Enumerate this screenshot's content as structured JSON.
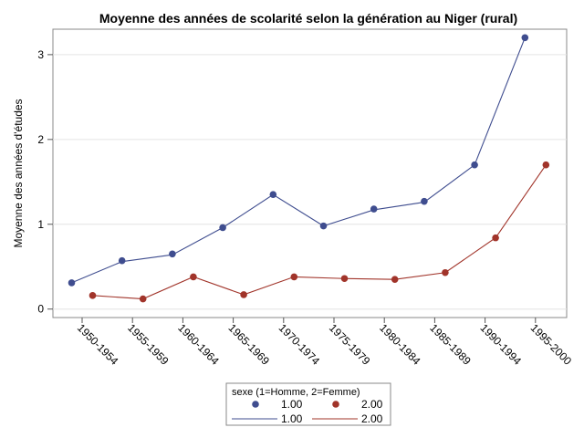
{
  "chart_data": {
    "type": "line",
    "title": "Moyenne des années de scolarité selon la génération au Niger (rural)",
    "xlabel": "",
    "ylabel": "Moyenne des années d'études",
    "categories": [
      "1950-1954",
      "1955-1959",
      "1960-1964",
      "1965-1969",
      "1970-1974",
      "1975-1979",
      "1980-1984",
      "1985-1989",
      "1990-1994",
      "1995-2000"
    ],
    "ylim": [
      -0.1,
      3.3
    ],
    "yticks": [
      0,
      1,
      2,
      3
    ],
    "grid": true,
    "legend_position": "bottom",
    "legend_title": "sexe (1=Homme, 2=Femme)",
    "series": [
      {
        "name": "1.00",
        "color": "#3f4d8f",
        "points": [
          0.31,
          0.57,
          0.65,
          0.96,
          1.35,
          0.98,
          1.18,
          1.27,
          1.7,
          3.2
        ],
        "line": [
          0.31,
          0.56,
          0.64,
          0.96,
          1.35,
          0.98,
          1.17,
          1.26,
          1.7,
          3.2
        ]
      },
      {
        "name": "2.00",
        "color": "#a1342a",
        "points": [
          0.16,
          0.12,
          0.38,
          0.17,
          0.38,
          0.36,
          0.35,
          0.43,
          0.84,
          1.7
        ],
        "line": [
          0.16,
          0.12,
          0.38,
          0.17,
          0.38,
          0.36,
          0.35,
          0.43,
          0.84,
          1.7
        ]
      }
    ]
  }
}
